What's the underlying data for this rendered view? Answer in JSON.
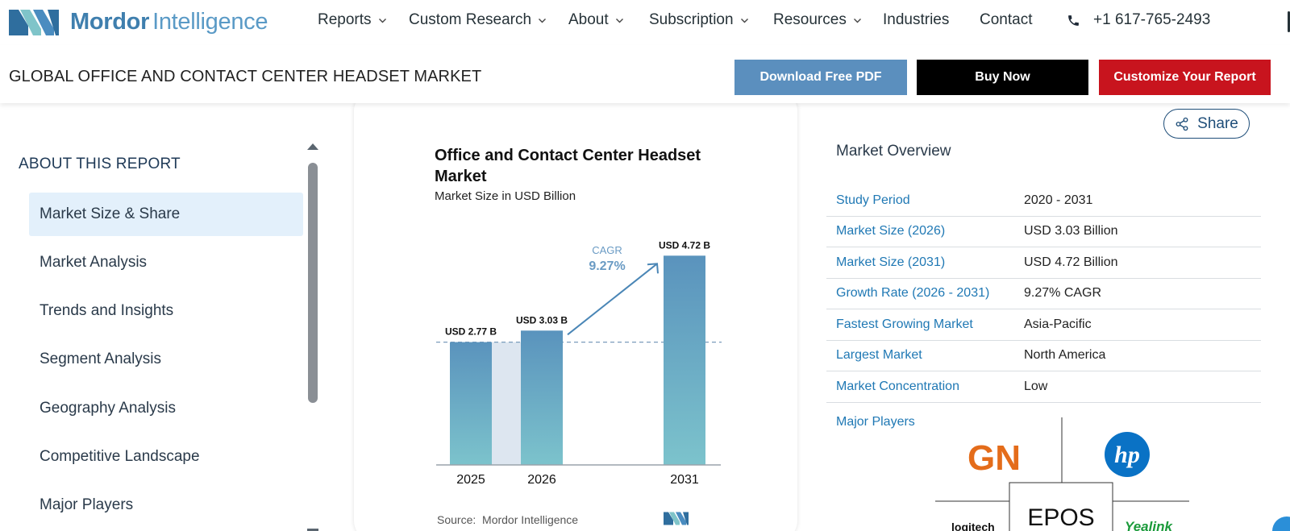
{
  "brand": {
    "name_part1": "Mordor",
    "name_part2": "Intelligence"
  },
  "nav": {
    "items": [
      {
        "label": "Reports",
        "has_dropdown": true
      },
      {
        "label": "Custom Research",
        "has_dropdown": true
      },
      {
        "label": "About",
        "has_dropdown": true
      },
      {
        "label": "Subscription",
        "has_dropdown": true
      },
      {
        "label": "Resources",
        "has_dropdown": true
      },
      {
        "label": "Industries",
        "has_dropdown": false
      },
      {
        "label": "Contact",
        "has_dropdown": false
      }
    ],
    "phone": "+1 617-765-2493"
  },
  "titlebar": {
    "title": "GLOBAL OFFICE AND CONTACT CENTER HEADSET MARKET",
    "download_label": "Download Free PDF",
    "buy_label": "Buy Now",
    "customize_label": "Customize Your Report"
  },
  "sidebar": {
    "heading": "ABOUT THIS REPORT",
    "items": [
      {
        "label": "Market Size & Share",
        "active": true
      },
      {
        "label": "Market Analysis",
        "active": false
      },
      {
        "label": "Trends and Insights",
        "active": false
      },
      {
        "label": "Segment Analysis",
        "active": false
      },
      {
        "label": "Geography Analysis",
        "active": false
      },
      {
        "label": "Competitive Landscape",
        "active": false
      },
      {
        "label": "Major Players",
        "active": false
      }
    ]
  },
  "chart_data": {
    "type": "bar",
    "title": "Office and Contact Center Headset Market",
    "subtitle": "Market Size in USD Billion",
    "categories": [
      "2025",
      "2026",
      "2031"
    ],
    "values": [
      2.77,
      3.03,
      4.72
    ],
    "data_labels": [
      "USD 2.77 B",
      "USD 3.03 B",
      "USD 4.72 B"
    ],
    "cagr_label": "CAGR",
    "cagr_value": "9.27%",
    "reference_line": 2.77,
    "ylim": [
      0,
      5.2
    ],
    "source_label": "Source:",
    "source_name": "Mordor Intelligence",
    "colors": {
      "bar_top": "#5a93bd",
      "bar_bottom": "#7cc3cc",
      "band": "#dde6f0",
      "arrow": "#4a86b6"
    }
  },
  "share": {
    "label": "Share"
  },
  "overview": {
    "title": "Market Overview",
    "rows": [
      {
        "key": "Study Period",
        "value": "2020 - 2031"
      },
      {
        "key": "Market Size (2026)",
        "value": "USD 3.03 Billion"
      },
      {
        "key": "Market Size (2031)",
        "value": "USD 4.72 Billion"
      },
      {
        "key": "Growth Rate (2026 - 2031)",
        "value": "9.27% CAGR"
      },
      {
        "key": "Fastest Growing Market",
        "value": "Asia-Pacific"
      },
      {
        "key": "Largest Market",
        "value": "North America"
      },
      {
        "key": "Market Concentration",
        "value": "Low"
      }
    ],
    "players_label": "Major Players",
    "players": [
      "GN",
      "hp",
      "EPOS",
      "logitech",
      "Yealink"
    ],
    "player_colors": {
      "gn": "#e46c1a",
      "hp": "#0a72c5",
      "yealink": "#1a9a3a"
    }
  }
}
